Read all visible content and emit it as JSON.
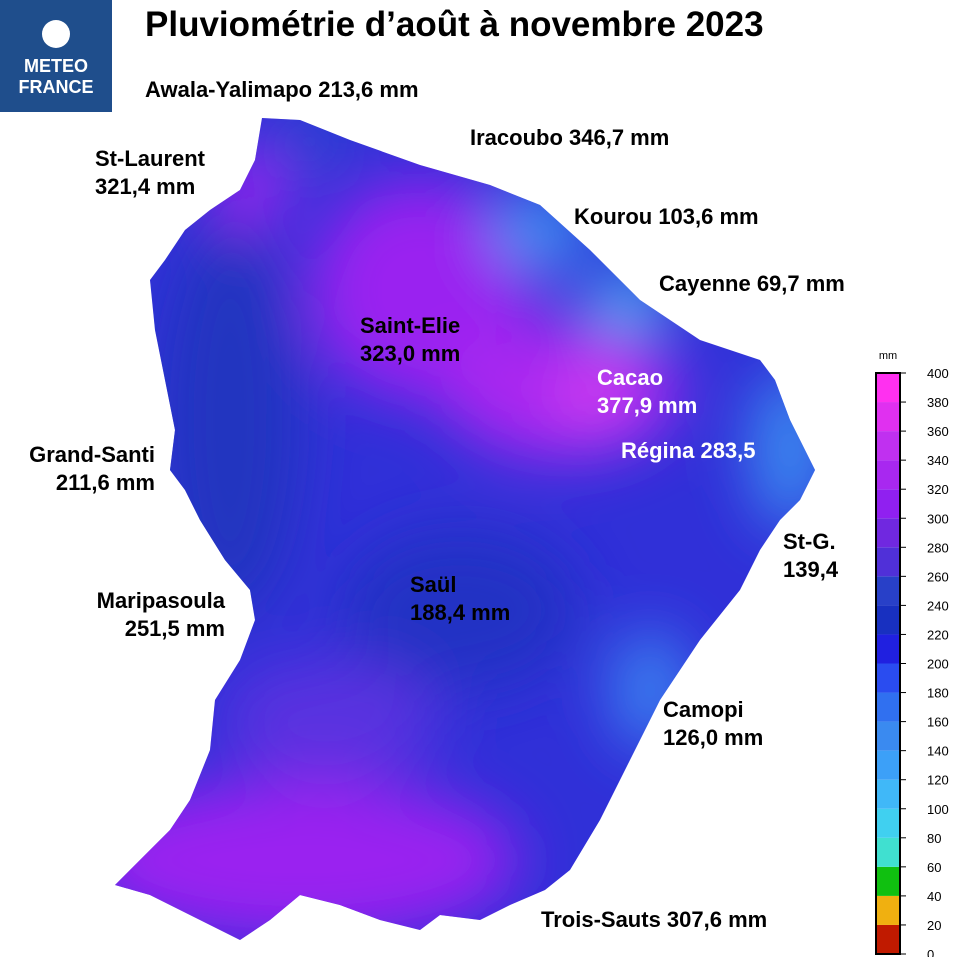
{
  "logo": {
    "line1": "METEO",
    "line2": "FRANCE"
  },
  "title": "Pluviométrie d’août à novembre 2023",
  "stations": [
    {
      "name": "Awala-Yalimapo 213,6 mm"
    },
    {
      "name": "Iracoubo 346,7 mm"
    },
    {
      "name": "St-Laurent",
      "value": "321,4 mm"
    },
    {
      "name": "Kourou 103,6 mm"
    },
    {
      "name": "Cayenne 69,7 mm"
    },
    {
      "name": "Saint-Elie",
      "value": "323,0 mm"
    },
    {
      "name": "Cacao",
      "value": "377,9 mm"
    },
    {
      "name": "Régina 283,5"
    },
    {
      "name": "Grand-Santi",
      "value": "211,6 mm"
    },
    {
      "name": "St-G.",
      "value": "139,4"
    },
    {
      "name": "Saül",
      "value": "188,4 mm"
    },
    {
      "name": "Maripasoula",
      "value": "251,5 mm"
    },
    {
      "name": "Camopi",
      "value": "126,0 mm"
    },
    {
      "name": "Trois-Sauts 307,6 mm"
    }
  ],
  "colorbar": {
    "unit": "mm",
    "ticks": [
      0,
      20,
      40,
      60,
      80,
      100,
      120,
      140,
      160,
      180,
      200,
      220,
      240,
      260,
      280,
      300,
      320,
      340,
      360,
      380,
      400
    ],
    "colors": [
      "#c01a00",
      "#f0b010",
      "#10c010",
      "#40e0d0",
      "#40d0f0",
      "#40b8f8",
      "#3ca0f8",
      "#3a8af0",
      "#3070f0",
      "#2a4cf0",
      "#2020e0",
      "#1830c0",
      "#2840c8",
      "#5030d8",
      "#7028e0",
      "#9020f0",
      "#a828f0",
      "#c030f0",
      "#e030f0",
      "#ff30f0"
    ]
  }
}
